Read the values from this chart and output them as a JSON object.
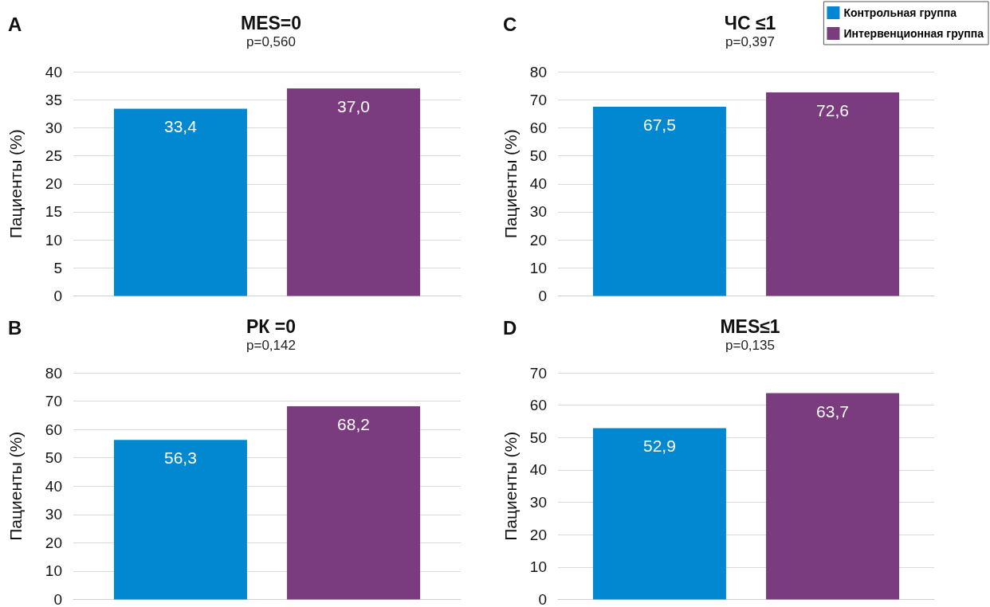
{
  "chart_data": [
    {
      "type": "bar",
      "title": "MES=0",
      "subtitle": "p=0,560",
      "ylabel": "Пациенты (%)",
      "annotations": [
        "A"
      ],
      "categories": [
        null
      ],
      "ylim": [
        0,
        40
      ],
      "yticks": [
        0,
        5,
        10,
        15,
        20,
        25,
        30,
        35,
        40
      ],
      "grid": "y",
      "legend": false,
      "series": [
        {
          "color": "#0288d1",
          "values": [
            33.4
          ],
          "value_labels": [
            "33,4"
          ]
        },
        {
          "color": "#7b3b7f",
          "values": [
            37.0
          ],
          "value_labels": [
            "37,0"
          ]
        }
      ]
    },
    {
      "type": "bar",
      "title": "ЧС ≤1",
      "subtitle": "p=0,397",
      "ylabel": "Пациенты (%)",
      "annotations": [
        "C"
      ],
      "categories": [
        null
      ],
      "ylim": [
        0,
        80
      ],
      "yticks": [
        0,
        10,
        20,
        30,
        40,
        50,
        60,
        70,
        80
      ],
      "grid": "y",
      "legend": "top right",
      "series": [
        {
          "name": "Контрольная группа",
          "color": "#0288d1",
          "values": [
            67.5
          ],
          "value_labels": [
            "67,5"
          ]
        },
        {
          "name": "Интервенционная группа",
          "color": "#7b3b7f",
          "values": [
            72.6
          ],
          "value_labels": [
            "72,6"
          ]
        }
      ]
    },
    {
      "type": "bar",
      "title": "РК =0",
      "subtitle": "p=0,142",
      "ylabel": "Пациенты (%)",
      "annotations": [
        "B"
      ],
      "categories": [
        null
      ],
      "ylim": [
        0,
        80
      ],
      "yticks": [
        0,
        10,
        20,
        30,
        40,
        50,
        60,
        70,
        80
      ],
      "grid": "y",
      "legend": false,
      "series": [
        {
          "color": "#0288d1",
          "values": [
            56.3
          ],
          "value_labels": [
            "56,3"
          ]
        },
        {
          "color": "#7b3b7f",
          "values": [
            68.2
          ],
          "value_labels": [
            "68,2"
          ]
        }
      ]
    },
    {
      "type": "bar",
      "title": "MES≤1",
      "subtitle": "p=0,135",
      "ylabel": "Пациенты (%)",
      "annotations": [
        "D"
      ],
      "categories": [
        null
      ],
      "ylim": [
        0,
        70
      ],
      "yticks": [
        0,
        10,
        20,
        30,
        40,
        50,
        60,
        70
      ],
      "grid": "y",
      "legend": false,
      "series": [
        {
          "color": "#0288d1",
          "values": [
            52.9
          ],
          "value_labels": [
            "52,9"
          ]
        },
        {
          "color": "#7b3b7f",
          "values": [
            63.7
          ],
          "value_labels": [
            "63,7"
          ]
        }
      ]
    }
  ]
}
